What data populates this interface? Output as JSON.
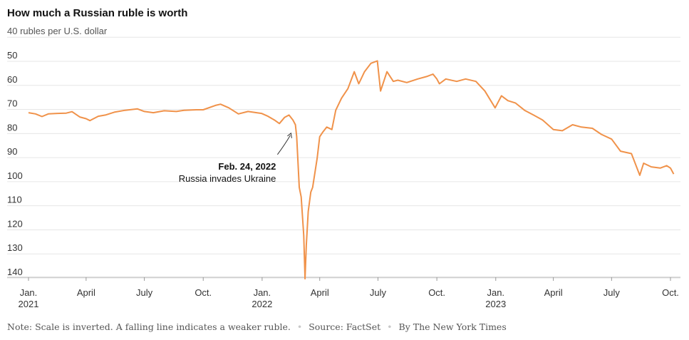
{
  "chart_data": {
    "type": "line",
    "title": "How much a Russian ruble is worth",
    "ylabel": "40 rubles per U.S. dollar",
    "y_inverted": true,
    "ylim": [
      40,
      145
    ],
    "y_ticks": [
      50,
      60,
      70,
      80,
      90,
      100,
      110,
      120,
      130,
      140
    ],
    "grid": true,
    "x_ticks": [
      {
        "date": "2021-01-01",
        "label": "Jan.",
        "sub": "2021"
      },
      {
        "date": "2021-04-01",
        "label": "April",
        "sub": ""
      },
      {
        "date": "2021-07-01",
        "label": "July",
        "sub": ""
      },
      {
        "date": "2021-10-01",
        "label": "Oct.",
        "sub": ""
      },
      {
        "date": "2022-01-01",
        "label": "Jan.",
        "sub": "2022"
      },
      {
        "date": "2022-04-01",
        "label": "April",
        "sub": ""
      },
      {
        "date": "2022-07-01",
        "label": "July",
        "sub": ""
      },
      {
        "date": "2022-10-01",
        "label": "Oct.",
        "sub": ""
      },
      {
        "date": "2023-01-01",
        "label": "Jan.",
        "sub": "2023"
      },
      {
        "date": "2023-04-01",
        "label": "April",
        "sub": ""
      },
      {
        "date": "2023-07-01",
        "label": "July",
        "sub": ""
      },
      {
        "date": "2023-10-01",
        "label": "Oct.",
        "sub": ""
      }
    ],
    "series": [
      {
        "color": "#f0924a",
        "points": [
          [
            "2021-01-01",
            74
          ],
          [
            "2021-01-12",
            74.5
          ],
          [
            "2021-01-22",
            75.6
          ],
          [
            "2021-02-01",
            74.5
          ],
          [
            "2021-02-15",
            74.3
          ],
          [
            "2021-03-01",
            74.2
          ],
          [
            "2021-03-10",
            73.6
          ],
          [
            "2021-03-22",
            75.8
          ],
          [
            "2021-04-01",
            76.5
          ],
          [
            "2021-04-07",
            77.3
          ],
          [
            "2021-04-20",
            75.5
          ],
          [
            "2021-05-01",
            75.0
          ],
          [
            "2021-05-15",
            73.8
          ],
          [
            "2021-06-01",
            73.0
          ],
          [
            "2021-06-20",
            72.4
          ],
          [
            "2021-07-01",
            73.5
          ],
          [
            "2021-07-15",
            74.0
          ],
          [
            "2021-08-01",
            73.2
          ],
          [
            "2021-08-20",
            73.5
          ],
          [
            "2021-09-01",
            73.0
          ],
          [
            "2021-09-20",
            72.8
          ],
          [
            "2021-10-01",
            72.8
          ],
          [
            "2021-10-20",
            71.0
          ],
          [
            "2021-10-28",
            70.5
          ],
          [
            "2021-11-10",
            72.0
          ],
          [
            "2021-11-25",
            74.5
          ],
          [
            "2021-12-10",
            73.5
          ],
          [
            "2021-12-31",
            74.3
          ],
          [
            "2022-01-10",
            75.5
          ],
          [
            "2022-01-20",
            77.0
          ],
          [
            "2022-01-28",
            78.5
          ],
          [
            "2022-02-05",
            76.0
          ],
          [
            "2022-02-12",
            75.0
          ],
          [
            "2022-02-18",
            77.0
          ],
          [
            "2022-02-22",
            79.0
          ],
          [
            "2022-02-24",
            84.0
          ],
          [
            "2022-02-28",
            105.0
          ],
          [
            "2022-03-03",
            109.0
          ],
          [
            "2022-03-07",
            125.0
          ],
          [
            "2022-03-09",
            143.0
          ],
          [
            "2022-03-11",
            129.0
          ],
          [
            "2022-03-14",
            115.0
          ],
          [
            "2022-03-18",
            107.0
          ],
          [
            "2022-03-21",
            105.0
          ],
          [
            "2022-03-28",
            93.0
          ],
          [
            "2022-04-01",
            84.0
          ],
          [
            "2022-04-06",
            82.0
          ],
          [
            "2022-04-12",
            80.0
          ],
          [
            "2022-04-20",
            81.0
          ],
          [
            "2022-04-26",
            73.0
          ],
          [
            "2022-05-05",
            68.0
          ],
          [
            "2022-05-15",
            64.0
          ],
          [
            "2022-05-25",
            57.0
          ],
          [
            "2022-06-01",
            62.0
          ],
          [
            "2022-06-10",
            57.0
          ],
          [
            "2022-06-20",
            53.5
          ],
          [
            "2022-06-30",
            52.5
          ],
          [
            "2022-07-05",
            65.0
          ],
          [
            "2022-07-15",
            57.0
          ],
          [
            "2022-07-25",
            61.0
          ],
          [
            "2022-08-01",
            60.5
          ],
          [
            "2022-08-15",
            61.5
          ],
          [
            "2022-09-01",
            60.0
          ],
          [
            "2022-09-15",
            59.0
          ],
          [
            "2022-09-25",
            58.0
          ],
          [
            "2022-10-01",
            60.0
          ],
          [
            "2022-10-05",
            62.0
          ],
          [
            "2022-10-15",
            60.0
          ],
          [
            "2022-11-01",
            61.0
          ],
          [
            "2022-11-15",
            60.0
          ],
          [
            "2022-12-01",
            61.0
          ],
          [
            "2022-12-15",
            65.0
          ],
          [
            "2022-12-31",
            72.0
          ],
          [
            "2023-01-10",
            67.0
          ],
          [
            "2023-01-20",
            69.0
          ],
          [
            "2023-02-01",
            70.0
          ],
          [
            "2023-02-15",
            73.0
          ],
          [
            "2023-03-01",
            75.0
          ],
          [
            "2023-03-15",
            77.0
          ],
          [
            "2023-04-01",
            81.0
          ],
          [
            "2023-04-15",
            81.5
          ],
          [
            "2023-05-01",
            79.0
          ],
          [
            "2023-05-15",
            80.0
          ],
          [
            "2023-06-01",
            80.5
          ],
          [
            "2023-06-15",
            83.0
          ],
          [
            "2023-07-01",
            85.0
          ],
          [
            "2023-07-15",
            90.0
          ],
          [
            "2023-08-01",
            91.0
          ],
          [
            "2023-08-14",
            100.0
          ],
          [
            "2023-08-20",
            95.0
          ],
          [
            "2023-09-01",
            96.5
          ],
          [
            "2023-09-15",
            97.0
          ],
          [
            "2023-09-25",
            96.0
          ],
          [
            "2023-10-01",
            97.0
          ],
          [
            "2023-10-06",
            99.5
          ]
        ]
      }
    ],
    "annotations": [
      {
        "date": "2022-02-24",
        "bold": "Feb. 24, 2022",
        "text": "Russia invades Ukraine"
      }
    ]
  },
  "footer": {
    "note": "Note: Scale is inverted. A falling line indicates a weaker ruble.",
    "source": "Source: FactSet",
    "credit": "By The New York Times"
  }
}
